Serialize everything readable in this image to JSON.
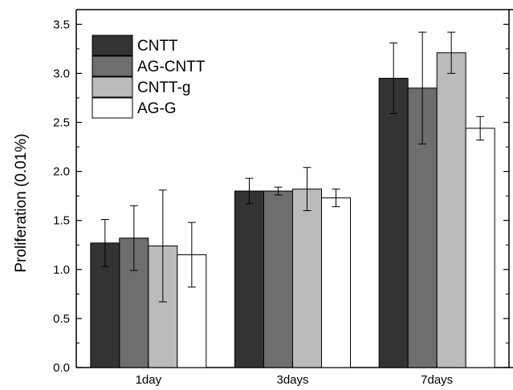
{
  "chart_data": {
    "type": "bar",
    "title": "",
    "xlabel": "",
    "ylabel": "Proliferation (0.01%)",
    "ylim": [
      0,
      3.65
    ],
    "yticks": [
      "0.0",
      "0.5",
      "1.0",
      "1.5",
      "2.0",
      "2.5",
      "3.0",
      "3.5"
    ],
    "categories": [
      "1day",
      "3days",
      "7days"
    ],
    "series": [
      {
        "name": "CNTT",
        "color": "#333333",
        "values": [
          1.27,
          1.8,
          2.95
        ],
        "errors": [
          0.24,
          0.13,
          0.36
        ]
      },
      {
        "name": "AG-CNTT",
        "color": "#6e6e6e",
        "values": [
          1.32,
          1.8,
          2.85
        ],
        "errors": [
          0.33,
          0.04,
          0.57
        ]
      },
      {
        "name": "CNTT-g",
        "color": "#bbbbbb",
        "values": [
          1.24,
          1.82,
          3.21
        ],
        "errors": [
          0.57,
          0.22,
          0.21
        ]
      },
      {
        "name": "AG-G",
        "color": "#ffffff",
        "values": [
          1.15,
          1.73,
          2.44
        ],
        "errors": [
          0.33,
          0.09,
          0.12
        ]
      }
    ],
    "legend_position": "top-left",
    "grid": false
  }
}
